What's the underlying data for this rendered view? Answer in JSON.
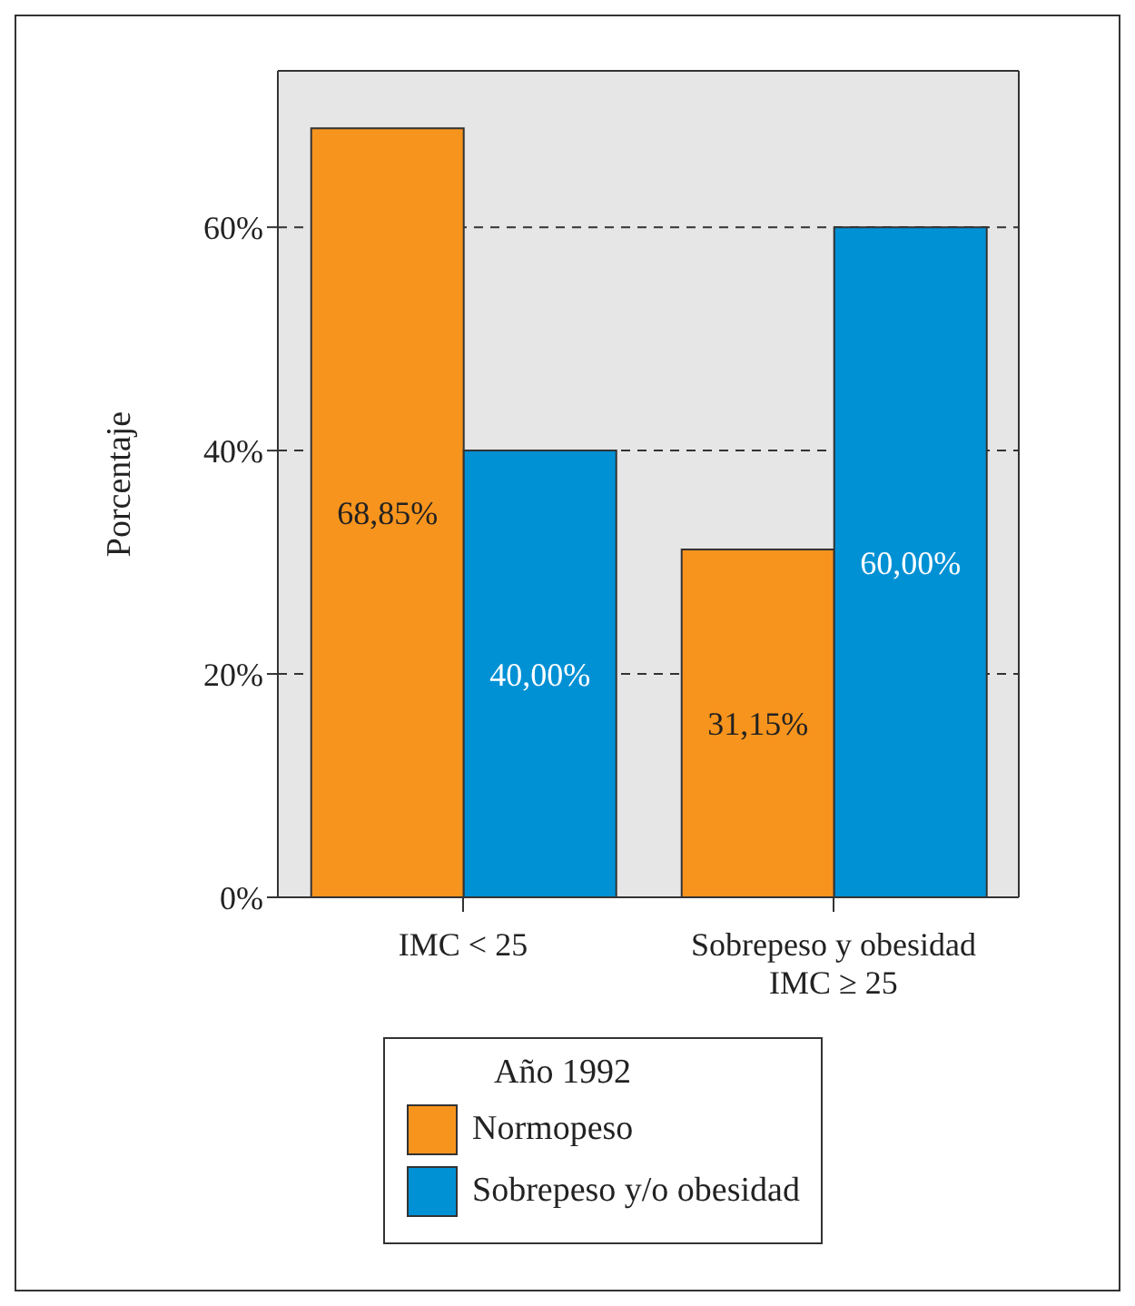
{
  "chart_data": {
    "type": "bar",
    "ylabel": "Porcentaje",
    "legend_title": "Año 1992",
    "categories": [
      "IMC < 25",
      "Sobrepeso y obesidad\nIMC ≥ 25"
    ],
    "series": [
      {
        "name": "Normopeso",
        "color": "#f7941d",
        "values": [
          68.85,
          31.15
        ],
        "value_labels": [
          "68,85%",
          "31,15%"
        ]
      },
      {
        "name": "Sobrepeso y/o obesidad",
        "color": "#0091d5",
        "values": [
          40,
          60
        ],
        "value_labels": [
          "40,00%",
          "60,00%"
        ]
      }
    ],
    "ylim": [
      0,
      74
    ],
    "yticks": [
      {
        "value": 0,
        "label": "0%"
      },
      {
        "value": 20,
        "label": "20%"
      },
      {
        "value": 40,
        "label": "40%"
      },
      {
        "value": 60,
        "label": "60%"
      }
    ],
    "grid": "y",
    "legend": "bottom"
  }
}
